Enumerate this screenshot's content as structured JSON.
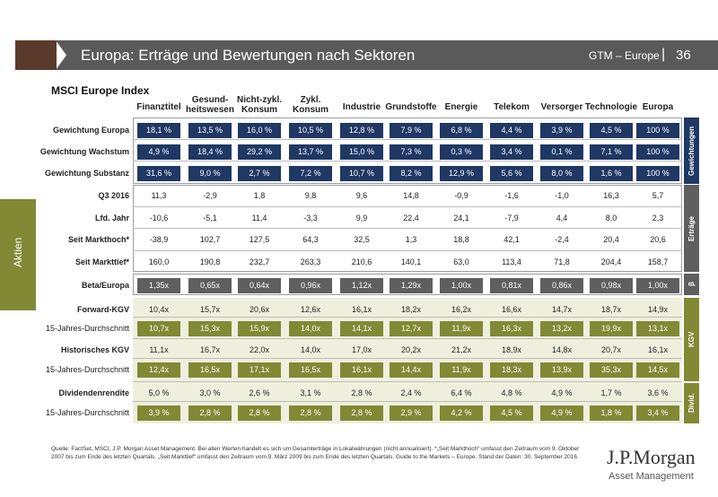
{
  "header": {
    "title": "Europa: Erträge und Bewertungen nach Sektoren",
    "gtm": "GTM – Europe",
    "separator": "|",
    "page": "36"
  },
  "side_tab": {
    "label": "Aktien"
  },
  "table_title": "MSCI Europe Index",
  "columns": [
    "Finanztitel",
    "Gesund-\nheitswesen",
    "Nicht-zykl.\nKonsum",
    "Zykl.\nKonsum",
    "Industrie",
    "Grundstoffe",
    "Energie",
    "Telekom",
    "Versorger",
    "Technologie",
    "Europa"
  ],
  "groups": {
    "gewichtungen": "Gewichtungen",
    "ertraege": "Erträge",
    "beta": "β",
    "kgv": "KGV",
    "divid": "Divid."
  },
  "rows": [
    {
      "label": "Gewichtung Europa",
      "values": [
        "18,1 %",
        "13,5 %",
        "16,0 %",
        "10,5 %",
        "12,8 %",
        "7,9 %",
        "6,8 %",
        "4,4 %",
        "3,9 %",
        "4,5 %",
        "100 %"
      ]
    },
    {
      "label": "Gewichtung Wachstum",
      "values": [
        "4,9 %",
        "18,4 %",
        "29,2 %",
        "13,7 %",
        "15,0 %",
        "7,3 %",
        "0,3 %",
        "3,4 %",
        "0,1 %",
        "7,1 %",
        "100 %"
      ]
    },
    {
      "label": "Gewichtung Substanz",
      "values": [
        "31,6 %",
        "9,0 %",
        "2,7 %",
        "7,2 %",
        "10,7 %",
        "8,2 %",
        "12,9 %",
        "5,6 %",
        "8,0 %",
        "1,6 %",
        "100 %"
      ]
    },
    {
      "label": "Q3 2016",
      "values": [
        "11,3",
        "-2,9",
        "1,8",
        "9,8",
        "9,6",
        "14,8",
        "-0,9",
        "-1,6",
        "-1,0",
        "16,3",
        "5,7"
      ]
    },
    {
      "label": "Lfd. Jahr",
      "values": [
        "-10,6",
        "-5,1",
        "11,4",
        "-3,3",
        "9,9",
        "22,4",
        "24,1",
        "-7,9",
        "4,4",
        "8,0",
        "2,3"
      ]
    },
    {
      "label": "Seit Markthoch*",
      "values": [
        "-38,9",
        "102,7",
        "127,5",
        "64,3",
        "32,5",
        "1,3",
        "18,8",
        "42,1",
        "-2,4",
        "20,4",
        "20,6"
      ]
    },
    {
      "label": "Seit Markttief*",
      "values": [
        "160,0",
        "190,8",
        "232,7",
        "263,3",
        "210,6",
        "140,1",
        "63,0",
        "113,4",
        "71,8",
        "204,4",
        "158,7"
      ]
    },
    {
      "label": "Beta/Europa",
      "values": [
        "1,35x",
        "0,65x",
        "0,64x",
        "0,96x",
        "1,12x",
        "1,29x",
        "1,00x",
        "0,81x",
        "0,86x",
        "0,98x",
        "1,00x"
      ]
    },
    {
      "label": "Forward-KGV",
      "values": [
        "10,4x",
        "15,7x",
        "20,6x",
        "12,6x",
        "16,1x",
        "18,2x",
        "16,2x",
        "16,6x",
        "14,7x",
        "18,7x",
        "14,9x"
      ]
    },
    {
      "label": "15-Jahres-Durchschnitt",
      "values": [
        "10,7x",
        "15,3x",
        "15,9x",
        "14,0x",
        "14,1x",
        "12,7x",
        "11,9x",
        "16,3x",
        "13,2x",
        "19,9x",
        "13,1x"
      ]
    },
    {
      "label": "Historisches KGV",
      "values": [
        "11,1x",
        "16,7x",
        "22,0x",
        "14,0x",
        "17,0x",
        "20,2x",
        "21,2x",
        "18,9x",
        "14,8x",
        "20,7x",
        "16,1x"
      ]
    },
    {
      "label": "15-Jahres-Durchschnitt",
      "values": [
        "12,4x",
        "16,5x",
        "17,1x",
        "16,5x",
        "16,1x",
        "14,4x",
        "11,9x",
        "18,3x",
        "13,9x",
        "35,3x",
        "14,5x"
      ]
    },
    {
      "label": "Dividendenrendite",
      "values": [
        "5,0 %",
        "3,0 %",
        "2,6 %",
        "3,1 %",
        "2,8 %",
        "2,4 %",
        "6,4 %",
        "4,8 %",
        "4,9 %",
        "1,7 %",
        "3,6 %"
      ]
    },
    {
      "label": "15-Jahres-Durchschnitt",
      "values": [
        "3,9 %",
        "2,8 %",
        "2,8 %",
        "2,8 %",
        "2,8 %",
        "2,9 %",
        "4,2 %",
        "4,5 %",
        "4,9 %",
        "1,8 %",
        "3,4 %"
      ]
    }
  ],
  "footnote": "Quelle: FactSet, MSCI, J.P. Morgan Asset Management. Bei allen Werten handelt es sich um Gesamterträge in Lokalwährungen (nicht annualisiert). *„Seit Markthoch“ umfasst den Zeitraum vom 9. Oktober 2007 bis zum Ende des letzten Quartals. „Seit Markttief“ umfasst den Zeitraum vom 9. März 2009 bis zum Ende des letzten Quartals. Guide to the Markets – Europe. Stand der Daten: 30. September 2016.",
  "logo": {
    "name": "J.P.Morgan",
    "sub": "Asset Management"
  },
  "colors": {
    "dark_blue": "#1f3864",
    "grey": "#5f5f5f",
    "olive": "#818935",
    "brown": "#5a3a2a"
  }
}
